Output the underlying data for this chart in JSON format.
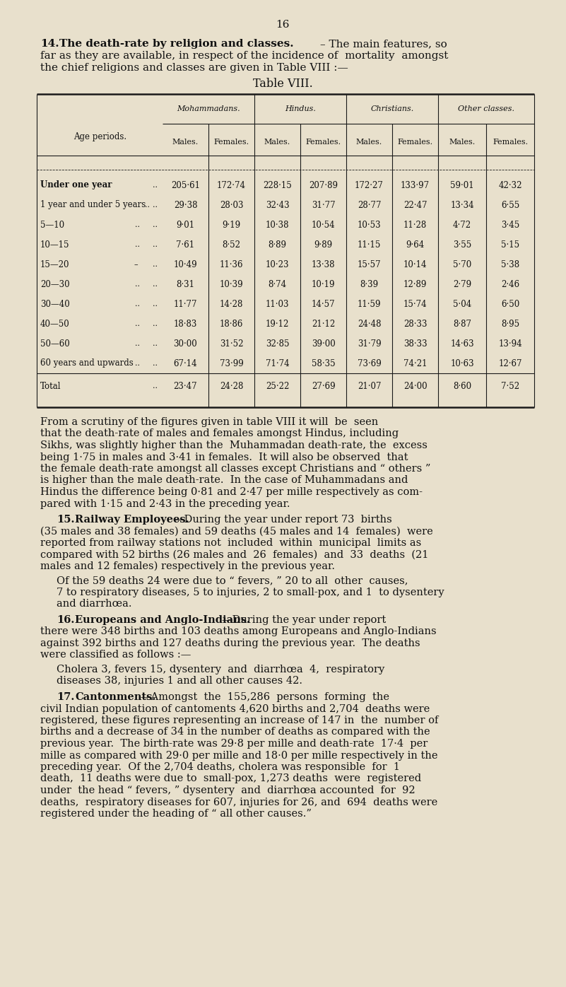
{
  "page_number": "16",
  "bg_color": "#e8e0cc",
  "col_groups": [
    "Mohammadans.",
    "Hindus.",
    "Christians.",
    "Other classes."
  ],
  "col_subheaders": [
    "Males.",
    "Females.",
    "Males.",
    "Females.",
    "Males.",
    "Females.",
    "Males.",
    "Females."
  ],
  "age_periods": [
    "Under one year",
    "1 year and under 5 years",
    "5—10",
    "10—15",
    "15—20",
    "20—30",
    "30—40",
    "40—50",
    "50—60",
    "60 years and upwards",
    "Total"
  ],
  "age_dots": [
    [
      "..",
      ".."
    ],
    [
      "..",
      ".."
    ],
    [
      "..",
      "..",
      ".."
    ],
    [
      "..",
      ".."
    ],
    [
      "–",
      ".."
    ],
    [
      "..",
      ".."
    ],
    [
      "..",
      ".."
    ],
    [
      "..",
      ".."
    ],
    [
      "..",
      ".."
    ],
    [
      "..",
      ".."
    ],
    [
      ".."
    ]
  ],
  "data": [
    [
      "205·61",
      "172·74",
      "228·15",
      "207·89",
      "172·27",
      "133·97",
      "59·01",
      "42·32"
    ],
    [
      "29·38",
      "28·03",
      "32·43",
      "31·77",
      "28·77",
      "22·47",
      "13·34",
      "6·55"
    ],
    [
      "9·01",
      "9·19",
      "10·38",
      "10·54",
      "10·53",
      "11·28",
      "4·72",
      "3·45"
    ],
    [
      "7·61",
      "8·52",
      "8·89",
      "9·89",
      "11·15",
      "9·64",
      "3·55",
      "5·15"
    ],
    [
      "10·49",
      "11·36",
      "10·23",
      "13·38",
      "15·57",
      "10·14",
      "5·70",
      "5·38"
    ],
    [
      "8·31",
      "10·39",
      "8·74",
      "10·19",
      "8·39",
      "12·89",
      "2·79",
      "2·46"
    ],
    [
      "11·77",
      "14·28",
      "11·03",
      "14·57",
      "11·59",
      "15·74",
      "5·04",
      "6·50"
    ],
    [
      "18·83",
      "18·86",
      "19·12",
      "21·12",
      "24·48",
      "28·33",
      "8·87",
      "8·95"
    ],
    [
      "30·00",
      "31·52",
      "32·85",
      "39·00",
      "31·79",
      "38·33",
      "14·63",
      "13·94"
    ],
    [
      "67·14",
      "73·99",
      "71·74",
      "58·35",
      "73·69",
      "74·21",
      "10·63",
      "12·67"
    ],
    [
      "23·47",
      "24·28",
      "25·22",
      "27·69",
      "21·07",
      "24·00",
      "8·60",
      "7·52"
    ]
  ]
}
